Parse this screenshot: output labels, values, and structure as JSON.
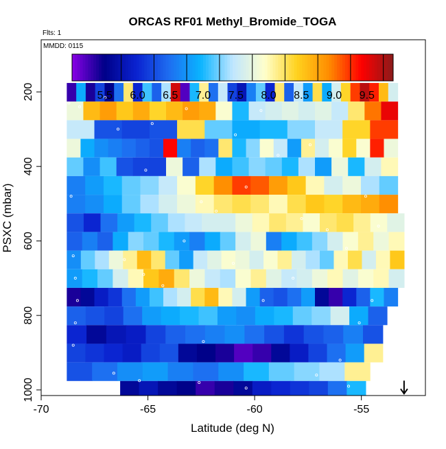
{
  "chart_data": {
    "type": "heatmap",
    "title": "ORCAS RF01 Methyl_Bromide_TOGA",
    "annotations": {
      "flights": "Flts: 1",
      "date": "MMDD: 0115"
    },
    "xlabel": "Latitude (deg N)",
    "ylabel": "PSXC (mbar)",
    "xlim": [
      -70,
      -52
    ],
    "ylim": [
      1015,
      60
    ],
    "xticks": [
      -70,
      -65,
      -60,
      -55
    ],
    "xtick_labels": [
      "-70",
      "-65",
      "-60",
      "-55"
    ],
    "yticks": [
      200,
      400,
      600,
      800,
      1000
    ],
    "ytick_labels": [
      "200",
      "400",
      "600",
      "800",
      "1000"
    ],
    "colorbar": {
      "ticks": [
        5.5,
        6.0,
        6.5,
        7.0,
        7.5,
        8.0,
        8.5,
        9.0,
        9.5
      ],
      "tick_labels": [
        "5.5",
        "6.0",
        "6.5",
        "7.0",
        "7.5",
        "8.0",
        "8.5",
        "9.0",
        "9.5"
      ],
      "range": [
        5.0,
        9.9
      ],
      "colors": [
        "#8a00e6",
        "#000088",
        "#0a22d0",
        "#1e6cf0",
        "#0ab4ff",
        "#bfe6ff",
        "#ffffcc",
        "#ffd21e",
        "#ff8c00",
        "#ff0000",
        "#8b1a1a"
      ]
    },
    "layers": [
      {
        "p_top": 176,
        "p_bot": 226,
        "lat_start": -68.8,
        "lat_end": -53.3,
        "values": [
          5.3,
          6.9,
          5.4,
          6.2,
          5.5,
          6.5,
          8.2,
          6.0,
          7.1,
          6.4,
          7.4,
          9.6,
          5.2,
          7.0,
          8.1,
          6.5,
          7.5,
          6.2,
          5.8,
          6.6,
          7.2,
          6.0,
          8.2,
          6.4,
          7.5,
          6.8,
          8.3,
          6.9,
          7.6,
          8.4,
          9.2,
          9.7,
          9.3,
          8.6,
          7.6
        ]
      },
      {
        "p_top": 226,
        "p_bot": 276,
        "lat_start": -68.8,
        "lat_end": -53.3,
        "values": [
          7.8,
          8.6,
          8.8,
          8.5,
          8.7,
          8.4,
          8.6,
          8.8,
          8.7,
          7.9,
          7.0,
          7.5,
          7.6,
          7.7,
          7.6,
          7.7,
          7.5,
          8.2,
          9.0,
          9.5
        ]
      },
      {
        "p_top": 276,
        "p_bot": 326,
        "lat_start": -68.8,
        "lat_end": -53.3,
        "values": [
          7.5,
          6.3,
          6.2,
          6.3,
          8.3,
          7.2,
          6.9,
          7.0,
          7.3,
          7.5,
          8.4,
          9.2
        ]
      },
      {
        "p_top": 326,
        "p_bot": 376,
        "lat_start": -68.8,
        "lat_end": -53.3,
        "values": [
          7.8,
          6.9,
          6.7,
          6.6,
          6.5,
          6.4,
          6.3,
          9.4,
          6.6,
          6.4,
          6.5,
          8.2,
          7.0,
          7.3,
          7.9,
          7.5,
          6.8,
          8.1,
          7.6,
          7.9,
          8.4,
          7.9,
          9.3,
          7.8
        ]
      },
      {
        "p_top": 376,
        "p_bot": 426,
        "lat_start": -68.8,
        "lat_end": -53.3,
        "values": [
          7.2,
          6.7,
          7.1,
          6.3,
          6.2,
          6.2,
          7.8,
          6.4,
          7.4,
          6.9,
          7.1,
          7.3,
          7.2,
          7.0,
          7.4,
          6.8,
          7.8,
          7.0,
          7.6,
          8.0
        ]
      },
      {
        "p_top": 426,
        "p_bot": 476,
        "lat_start": -68.8,
        "lat_end": -53.3,
        "values": [
          6.6,
          6.8,
          7.0,
          7.2,
          7.3,
          7.5,
          7.9,
          8.4,
          8.9,
          9.2,
          9.1,
          8.8,
          8.5,
          8.0,
          7.6,
          7.8,
          7.4,
          7.2
        ]
      },
      {
        "p_top": 476,
        "p_bot": 526,
        "lat_start": -68.8,
        "lat_end": -53.3,
        "values": [
          6.6,
          6.7,
          6.9,
          7.2,
          7.4,
          7.6,
          7.8,
          8.0,
          8.2,
          8.3,
          8.2,
          8.0,
          8.3,
          8.5,
          8.4,
          8.6,
          8.7,
          8.9
        ]
      },
      {
        "p_top": 526,
        "p_bot": 576,
        "lat_start": -68.8,
        "lat_end": -53.0,
        "values": [
          6.3,
          6.0,
          6.5,
          6.8,
          7.0,
          7.2,
          7.4,
          7.5,
          7.6,
          7.6,
          7.8,
          8.0,
          8.2,
          8.1,
          7.9,
          8.2,
          8.3,
          8.1,
          7.9,
          7.7
        ]
      },
      {
        "p_top": 576,
        "p_bot": 626,
        "lat_start": -68.8,
        "lat_end": -53.0,
        "values": [
          6.4,
          6.6,
          6.4,
          6.9,
          7.3,
          7.2,
          7.0,
          6.8,
          6.6,
          6.9,
          7.2,
          7.6,
          7.8,
          6.6,
          6.9,
          7.1,
          7.3,
          7.6,
          7.9,
          8.1,
          7.8,
          8.0
        ]
      },
      {
        "p_top": 626,
        "p_bot": 676,
        "lat_start": -68.8,
        "lat_end": -53.0,
        "values": [
          6.7,
          7.2,
          7.4,
          7.8,
          8.1,
          8.6,
          8.2,
          7.2,
          6.8,
          7.5,
          7.7,
          7.9,
          7.8,
          7.6,
          7.9,
          8.1,
          7.6,
          7.4,
          7.2,
          8.0,
          8.3,
          7.6,
          8.0,
          8.5
        ]
      },
      {
        "p_top": 676,
        "p_bot": 726,
        "lat_start": -68.8,
        "lat_end": -53.0,
        "values": [
          6.8,
          7.0,
          7.2,
          7.6,
          8.0,
          8.5,
          8.7,
          8.2,
          7.8,
          7.5,
          7.4,
          7.9,
          8.1,
          7.7,
          7.5,
          7.6,
          7.8,
          8.0,
          7.7,
          7.9,
          8.0,
          7.6
        ]
      },
      {
        "p_top": 726,
        "p_bot": 776,
        "lat_start": -68.8,
        "lat_end": -53.3,
        "values": [
          5.4,
          5.6,
          5.9,
          6.1,
          6.5,
          6.8,
          7.1,
          7.4,
          7.6,
          8.3,
          8.6,
          8.0,
          7.6,
          6.8,
          6.4,
          6.3,
          6.5,
          6.8,
          5.6,
          5.3,
          6.0,
          6.4,
          7.0,
          6.6
        ]
      },
      {
        "p_top": 776,
        "p_bot": 826,
        "lat_start": -68.8,
        "lat_end": -53.8,
        "values": [
          6.4,
          6.3,
          6.2,
          6.5,
          6.8,
          6.9,
          7.0,
          7.1,
          6.8,
          6.7,
          6.9,
          7.0,
          7.2,
          7.3,
          7.6,
          6.9,
          6.4
        ]
      },
      {
        "p_top": 826,
        "p_bot": 876,
        "lat_start": -68.8,
        "lat_end": -54.0,
        "values": [
          6.0,
          5.6,
          5.8,
          5.9,
          6.2,
          6.4,
          6.5,
          6.6,
          6.7,
          6.5,
          6.3,
          6.1,
          6.3,
          6.4,
          6.6,
          6.3
        ]
      },
      {
        "p_top": 876,
        "p_bot": 926,
        "lat_start": -68.8,
        "lat_end": -54.0,
        "values": [
          6.2,
          6.1,
          6.0,
          5.9,
          6.2,
          6.3,
          5.6,
          5.5,
          5.4,
          5.2,
          5.3,
          5.6,
          5.9,
          6.2,
          6.5,
          6.8,
          8.1
        ]
      },
      {
        "p_top": 926,
        "p_bot": 976,
        "lat_start": -68.8,
        "lat_end": -54.6,
        "values": [
          6.3,
          6.5,
          6.7,
          6.8,
          6.6,
          6.5,
          6.7,
          7.0,
          7.2,
          7.3,
          7.4,
          8.1
        ]
      },
      {
        "p_top": 976,
        "p_bot": 1015,
        "lat_start": -66.3,
        "lat_end": -54.8,
        "values": [
          5.6,
          5.8,
          5.6,
          5.5,
          5.3,
          5.4,
          5.6,
          5.9,
          6.0,
          6.1,
          6.2,
          6.5,
          7.0
        ]
      }
    ],
    "sample_points": [
      [
        -68.7,
        230
      ],
      [
        -68.2,
        240
      ],
      [
        -67.0,
        215
      ],
      [
        -66.4,
        300
      ],
      [
        -65.1,
        410
      ],
      [
        -64.8,
        285
      ],
      [
        -63.2,
        245
      ],
      [
        -62.5,
        495
      ],
      [
        -61.8,
        520
      ],
      [
        -60.4,
        455
      ],
      [
        -59.7,
        250
      ],
      [
        -58.9,
        370
      ],
      [
        -57.8,
        540
      ],
      [
        -56.6,
        570
      ],
      [
        -55.7,
        620
      ],
      [
        -54.8,
        480
      ],
      [
        -54.2,
        560
      ],
      [
        -68.6,
        480
      ],
      [
        -68.5,
        640
      ],
      [
        -68.4,
        700
      ],
      [
        -68.3,
        760
      ],
      [
        -68.4,
        820
      ],
      [
        -68.5,
        880
      ],
      [
        -66.1,
        650
      ],
      [
        -65.2,
        690
      ],
      [
        -64.3,
        720
      ],
      [
        -63.3,
        600
      ],
      [
        -62.4,
        870
      ],
      [
        -61.0,
        660
      ],
      [
        -59.6,
        760
      ],
      [
        -58.2,
        700
      ],
      [
        -57.1,
        960
      ],
      [
        -56.0,
        920
      ],
      [
        -55.1,
        820
      ],
      [
        -54.5,
        760
      ],
      [
        -66.6,
        955
      ],
      [
        -65.4,
        975
      ],
      [
        -62.6,
        980
      ],
      [
        -60.4,
        995
      ],
      [
        -55.6,
        990
      ],
      [
        -60.9,
        315
      ],
      [
        -57.4,
        342
      ]
    ],
    "arrow": {
      "lat": -53.0,
      "p_from": 975,
      "p_to": 1010
    }
  }
}
